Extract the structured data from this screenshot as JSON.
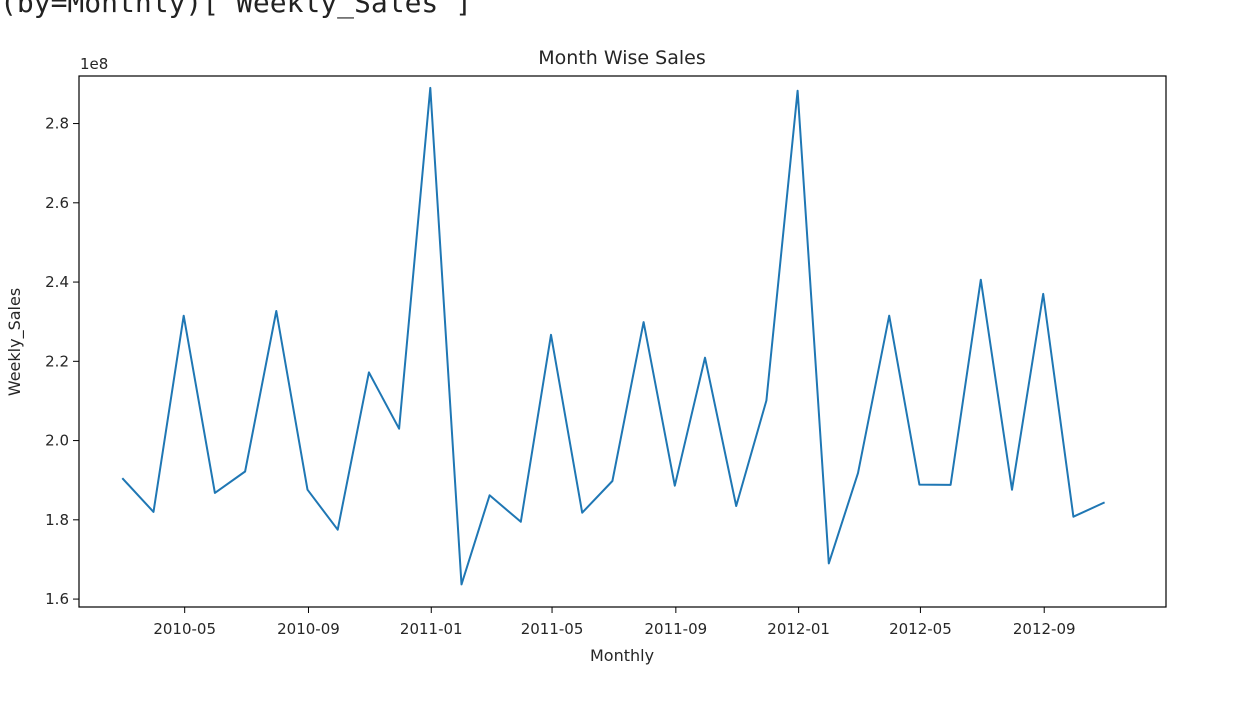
{
  "top_caption": "(by=Monthly)['Weekly_Sales']",
  "chart_data": {
    "type": "line",
    "title": "Month Wise Sales",
    "xlabel": "Monthly",
    "ylabel": "Weekly_Sales",
    "offset_text": "1e8",
    "y_scale": 100000000,
    "ylim": [
      1.58,
      2.92
    ],
    "xlim": [
      "2010-01-16",
      "2012-12-31"
    ],
    "grid": false,
    "line_color": "#1f77b4",
    "x_ticks": [
      "2010-05",
      "2010-09",
      "2011-01",
      "2011-05",
      "2011-09",
      "2012-01",
      "2012-05",
      "2012-09"
    ],
    "y_ticks": [
      "1.6",
      "1.8",
      "2.0",
      "2.2",
      "2.4",
      "2.6",
      "2.8"
    ],
    "series": [
      {
        "x": [
          "2010-02-28",
          "2010-03-31",
          "2010-04-30",
          "2010-05-31",
          "2010-06-30",
          "2010-07-31",
          "2010-08-31",
          "2010-09-30",
          "2010-10-31",
          "2010-11-30",
          "2010-12-31",
          "2011-01-31",
          "2011-02-28",
          "2011-03-31",
          "2011-04-30",
          "2011-05-31",
          "2011-06-30",
          "2011-07-31",
          "2011-08-31",
          "2011-09-30",
          "2011-10-31",
          "2011-11-30",
          "2011-12-31",
          "2012-01-31",
          "2012-02-29",
          "2012-03-31",
          "2012-04-30",
          "2012-05-31",
          "2012-06-30",
          "2012-07-31",
          "2012-08-31",
          "2012-09-30",
          "2012-10-31"
        ],
        "values": [
          1.905,
          1.82,
          2.315,
          1.868,
          1.922,
          2.327,
          1.876,
          1.775,
          2.172,
          2.03,
          2.89,
          1.637,
          1.862,
          1.795,
          2.267,
          1.818,
          1.898,
          2.299,
          1.886,
          2.209,
          1.835,
          2.101,
          2.883,
          1.69,
          1.918,
          2.315,
          1.889,
          1.888,
          2.406,
          1.876,
          2.37,
          1.808,
          1.844
        ]
      }
    ]
  }
}
